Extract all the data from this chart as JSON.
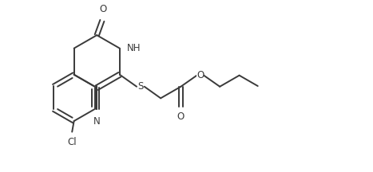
{
  "bg_color": "#ffffff",
  "line_color": "#3a3a3a",
  "text_color": "#3a3a3a",
  "linewidth": 1.4,
  "fontsize": 8.5,
  "figsize": [
    4.67,
    2.16
  ],
  "dpi": 100,
  "xlim": [
    0,
    9.5
  ],
  "ylim": [
    0,
    4.3
  ]
}
